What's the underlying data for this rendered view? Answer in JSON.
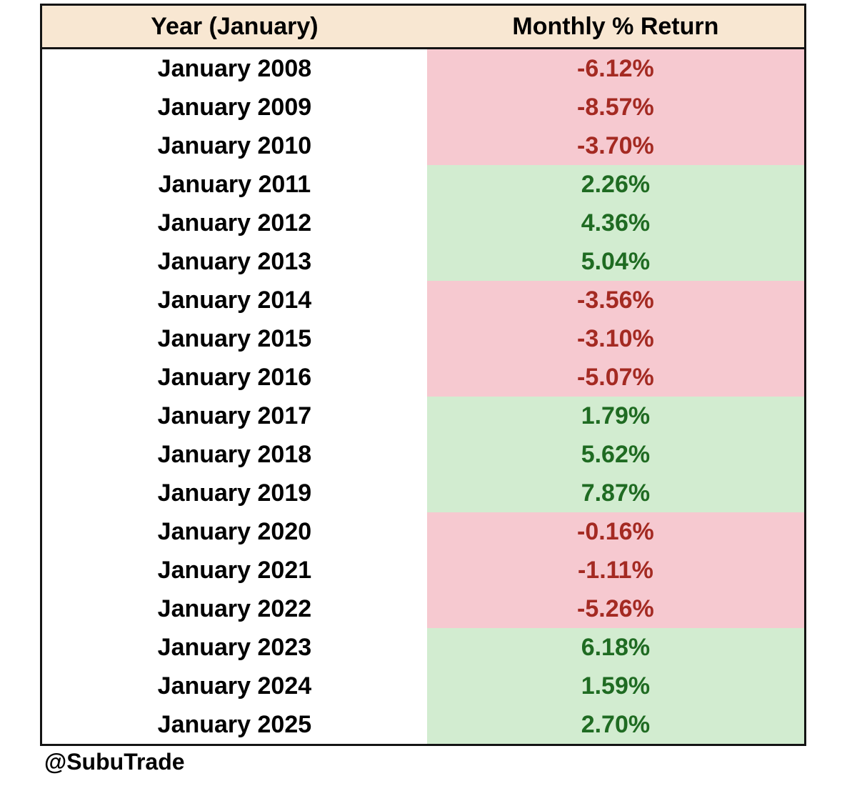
{
  "table": {
    "header": {
      "year_label": "Year (January)",
      "return_label": "Monthly % Return"
    },
    "rows": [
      {
        "year": "January 2008",
        "value": "-6.12%",
        "direction": "negative"
      },
      {
        "year": "January 2009",
        "value": "-8.57%",
        "direction": "negative"
      },
      {
        "year": "January 2010",
        "value": "-3.70%",
        "direction": "negative"
      },
      {
        "year": "January 2011",
        "value": "2.26%",
        "direction": "positive"
      },
      {
        "year": "January 2012",
        "value": "4.36%",
        "direction": "positive"
      },
      {
        "year": "January 2013",
        "value": "5.04%",
        "direction": "positive"
      },
      {
        "year": "January 2014",
        "value": "-3.56%",
        "direction": "negative"
      },
      {
        "year": "January 2015",
        "value": "-3.10%",
        "direction": "negative"
      },
      {
        "year": "January 2016",
        "value": "-5.07%",
        "direction": "negative"
      },
      {
        "year": "January 2017",
        "value": "1.79%",
        "direction": "positive"
      },
      {
        "year": "January 2018",
        "value": "5.62%",
        "direction": "positive"
      },
      {
        "year": "January 2019",
        "value": "7.87%",
        "direction": "positive"
      },
      {
        "year": "January 2020",
        "value": "-0.16%",
        "direction": "negative"
      },
      {
        "year": "January 2021",
        "value": "-1.11%",
        "direction": "negative"
      },
      {
        "year": "January 2022",
        "value": "-5.26%",
        "direction": "negative"
      },
      {
        "year": "January 2023",
        "value": "6.18%",
        "direction": "positive"
      },
      {
        "year": "January 2024",
        "value": "1.59%",
        "direction": "positive"
      },
      {
        "year": "January 2025",
        "value": "2.70%",
        "direction": "positive"
      }
    ],
    "colors": {
      "header_bg": "#f8e7d2",
      "border": "#141414",
      "negative_bg": "#f6c9d0",
      "negative_text": "#a42a22",
      "positive_bg": "#d2ecd0",
      "positive_text": "#1f6b22"
    }
  },
  "footer": {
    "handle": "@SubuTrade"
  },
  "chart_data": {
    "type": "table",
    "title": "",
    "columns": [
      "Year (January)",
      "Monthly % Return"
    ],
    "categories": [
      "January 2008",
      "January 2009",
      "January 2010",
      "January 2011",
      "January 2012",
      "January 2013",
      "January 2014",
      "January 2015",
      "January 2016",
      "January 2017",
      "January 2018",
      "January 2019",
      "January 2020",
      "January 2021",
      "January 2022",
      "January 2023",
      "January 2024",
      "January 2025"
    ],
    "values": [
      -6.12,
      -8.57,
      -3.7,
      2.26,
      4.36,
      5.04,
      -3.56,
      -3.1,
      -5.07,
      1.79,
      5.62,
      7.87,
      -0.16,
      -1.11,
      -5.26,
      6.18,
      1.59,
      2.7
    ],
    "value_unit": "%",
    "annotations": [
      "@SubuTrade"
    ],
    "layout_hints": {
      "negative_rows_highlighted": "pink background, dark red text",
      "positive_rows_highlighted": "green background, dark green text",
      "header_background": "cream"
    }
  }
}
